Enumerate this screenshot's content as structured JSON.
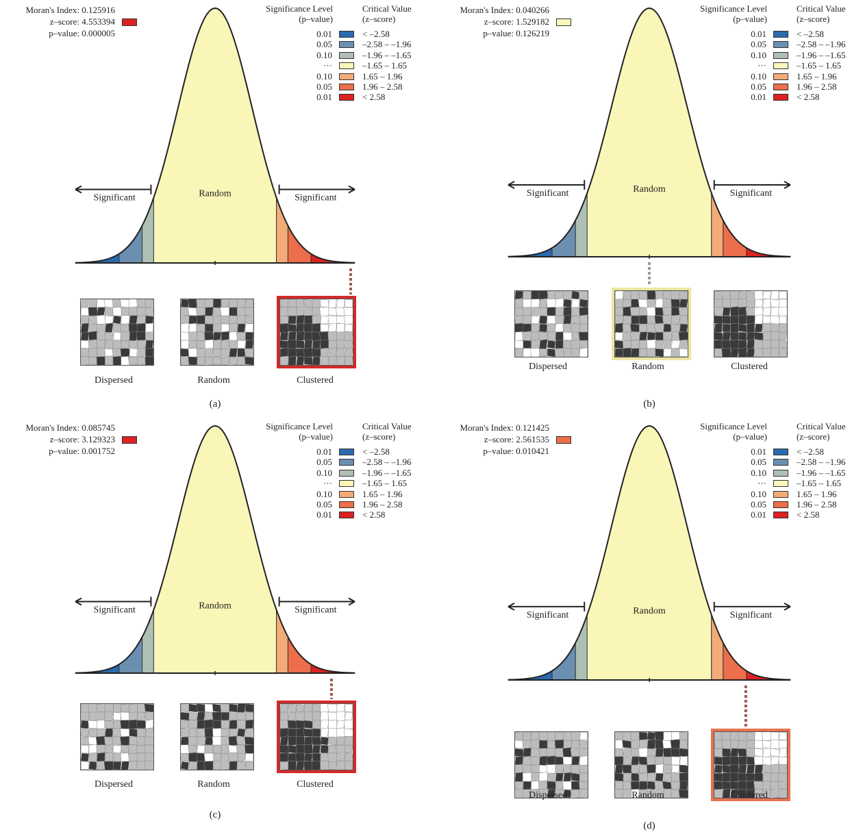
{
  "colors": {
    "bin_neg_258": "#2a6aae",
    "bin_neg_196": "#6b8fb1",
    "bin_neg_165": "#aebfb4",
    "bin_mid": "#fbf7bc",
    "bin_pos_165": "#f3ab78",
    "bin_pos_196": "#ec6e4a",
    "bin_pos_258": "#dc2222",
    "curve_fill": "#faf6b8",
    "map_dark": "#3a3a3a",
    "map_gray": "#bdbdbd",
    "connector": "#a05a55"
  },
  "chart_data": [
    {
      "type": "area",
      "caption": "(a)",
      "stats": {
        "morans_index": "Moran's Index: 0.125916",
        "z_score": "z–score: 4.553394",
        "p_value": "p–value: 0.000005",
        "z_color": "#dc2222"
      },
      "region_label": "Random",
      "left_label": "Significant",
      "right_label": "Significant",
      "z_value": 4.553394,
      "selected": "Clustered",
      "legend": {
        "p_header": [
          "Significance Level",
          "(p–value)"
        ],
        "z_header": [
          "Critical Value",
          "(z–score)"
        ],
        "rows": [
          {
            "p": "0.01",
            "range": "< –2.58",
            "color": "#2a6aae"
          },
          {
            "p": "0.05",
            "range": "–2.58 – –1.96",
            "color": "#6b8fb1"
          },
          {
            "p": "0.10",
            "range": "–1.96 – –1.65",
            "color": "#aebfb4"
          },
          {
            "p": "···",
            "range": "–1.65 – 1.65",
            "color": "#fbf7bc"
          },
          {
            "p": "0.10",
            "range": "1.65 – 1.96",
            "color": "#f3ab78"
          },
          {
            "p": "0.05",
            "range": "1.96 – 2.58",
            "color": "#ec6e4a"
          },
          {
            "p": "0.01",
            "range": "< 2.58",
            "color": "#dc2222"
          }
        ]
      },
      "maps": [
        "Dispersed",
        "Random",
        "Clustered"
      ]
    },
    {
      "type": "area",
      "caption": "(b)",
      "stats": {
        "morans_index": "Moran's Index: 0.040266",
        "z_score": "z–score: 1.529182",
        "p_value": "p–value: 0.126219",
        "z_color": "#fbf7bc"
      },
      "region_label": "Random",
      "left_label": "Significant",
      "right_label": "Significant",
      "z_value": 1.529182,
      "selected": "Random",
      "legend": {
        "p_header": [
          "Significance Level",
          "(p–value)"
        ],
        "z_header": [
          "Critical Value",
          "(z–score)"
        ],
        "rows": [
          {
            "p": "0.01",
            "range": "< –2.58",
            "color": "#2a6aae"
          },
          {
            "p": "0.05",
            "range": "–2.58 – –1.96",
            "color": "#6b8fb1"
          },
          {
            "p": "0.10",
            "range": "–1.96 – –1.65",
            "color": "#aebfb4"
          },
          {
            "p": "···",
            "range": "–1.65 – 1.65",
            "color": "#fbf7bc"
          },
          {
            "p": "0.10",
            "range": "1.65 – 1.96",
            "color": "#f3ab78"
          },
          {
            "p": "0.05",
            "range": "1.96 – 2.58",
            "color": "#ec6e4a"
          },
          {
            "p": "0.01",
            "range": "< 2.58",
            "color": "#dc2222"
          }
        ]
      },
      "maps": [
        "Dispersed",
        "Random",
        "Clustered"
      ]
    },
    {
      "type": "area",
      "caption": "(c)",
      "stats": {
        "morans_index": "Moran's Index: 0.085745",
        "z_score": "z–score: 3.129323",
        "p_value": "p–value: 0.001752",
        "z_color": "#dc2222"
      },
      "region_label": "Random",
      "left_label": "Significant",
      "right_label": "Significant",
      "z_value": 3.129323,
      "selected": "Clustered",
      "legend": {
        "p_header": [
          "Significance Level",
          "(p–value)"
        ],
        "z_header": [
          "Critical Value",
          "(z–score)"
        ],
        "rows": [
          {
            "p": "0.01",
            "range": "< –2.58",
            "color": "#2a6aae"
          },
          {
            "p": "0.05",
            "range": "–2.58 – –1.96",
            "color": "#6b8fb1"
          },
          {
            "p": "0.10",
            "range": "–1.96 – –1.65",
            "color": "#aebfb4"
          },
          {
            "p": "···",
            "range": "–1.65 – 1.65",
            "color": "#fbf7bc"
          },
          {
            "p": "0.10",
            "range": "1.65 – 1.96",
            "color": "#f3ab78"
          },
          {
            "p": "0.05",
            "range": "1.96 – 2.58",
            "color": "#ec6e4a"
          },
          {
            "p": "0.01",
            "range": "< 2.58",
            "color": "#dc2222"
          }
        ]
      },
      "maps": [
        "Dispersed",
        "Random",
        "Clustered"
      ]
    },
    {
      "type": "area",
      "caption": "(d)",
      "stats": {
        "morans_index": "Moran's Index: 0.121425",
        "z_score": "z–score: 2.561535",
        "p_value": "p–value: 0.010421",
        "z_color": "#ec6e4a"
      },
      "region_label": "Random",
      "left_label": "Significant",
      "right_label": "Significant",
      "z_value": 2.561535,
      "selected": "Clustered",
      "legend": {
        "p_header": [
          "Significance Level",
          "(p–value)"
        ],
        "z_header": [
          "Critical Value",
          "(z–score)"
        ],
        "rows": [
          {
            "p": "0.01",
            "range": "< –2.58",
            "color": "#2a6aae"
          },
          {
            "p": "0.05",
            "range": "–2.58 – –1.96",
            "color": "#6b8fb1"
          },
          {
            "p": "0.10",
            "range": "–1.96 – –1.65",
            "color": "#aebfb4"
          },
          {
            "p": "···",
            "range": "–1.65 – 1.65",
            "color": "#fbf7bc"
          },
          {
            "p": "0.10",
            "range": "1.65 – 1.96",
            "color": "#f3ab78"
          },
          {
            "p": "0.05",
            "range": "1.96 – 2.58",
            "color": "#ec6e4a"
          },
          {
            "p": "0.01",
            "range": "< 2.58",
            "color": "#dc2222"
          }
        ]
      },
      "maps": [
        "Dispersed",
        "Random",
        "Clustered"
      ]
    }
  ]
}
